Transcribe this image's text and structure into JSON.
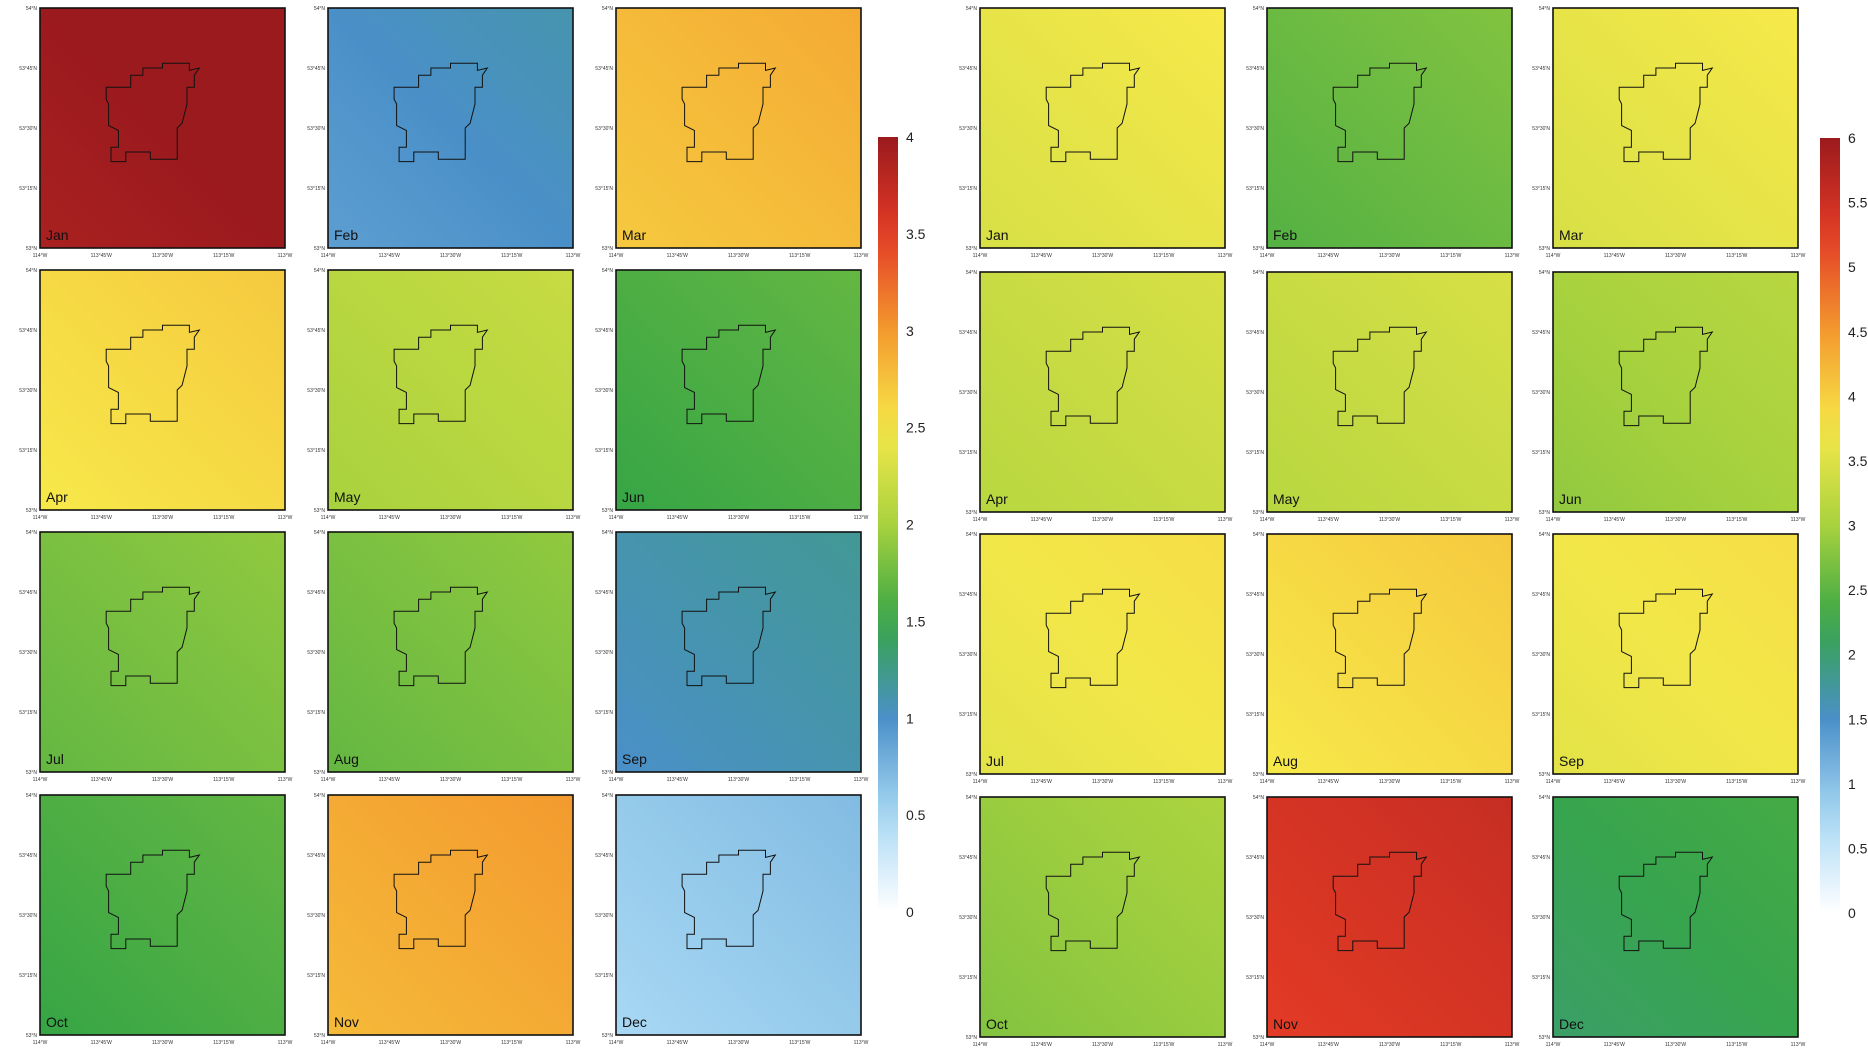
{
  "chart_data": [
    {
      "type": "heatmap",
      "title": "",
      "xlabel": "",
      "ylabel": "",
      "x_ticks": [
        "114°W",
        "113°45'W",
        "113°30'W",
        "113°15'W",
        "113°W"
      ],
      "y_ticks": [
        "54°N",
        "53°45'N",
        "53°30'N",
        "53°15'N",
        "53°N"
      ],
      "months": [
        {
          "label": "Jan",
          "value": 4.0
        },
        {
          "label": "Feb",
          "value": 1.0
        },
        {
          "label": "Mar",
          "value": 2.8
        },
        {
          "label": "Apr",
          "value": 2.6
        },
        {
          "label": "May",
          "value": 2.1
        },
        {
          "label": "Jun",
          "value": 1.6
        },
        {
          "label": "Jul",
          "value": 1.8
        },
        {
          "label": "Aug",
          "value": 1.8
        },
        {
          "label": "Sep",
          "value": 1.1
        },
        {
          "label": "Oct",
          "value": 1.6
        },
        {
          "label": "Nov",
          "value": 2.9
        },
        {
          "label": "Dec",
          "value": 0.6
        }
      ],
      "colorbar": {
        "min": 0,
        "max": 4,
        "ticks": [
          "0",
          "0.5",
          "1",
          "1.5",
          "2",
          "2.5",
          "3",
          "3.5",
          "4"
        ]
      }
    },
    {
      "type": "heatmap",
      "title": "",
      "xlabel": "",
      "ylabel": "",
      "x_ticks": [
        "114°W",
        "113°45'W",
        "113°30'W",
        "113°15'W",
        "113°W"
      ],
      "y_ticks": [
        "54°N",
        "53°45'N",
        "53°30'N",
        "53°15'N",
        "53°N"
      ],
      "months": [
        {
          "label": "Jan",
          "value": 3.6
        },
        {
          "label": "Feb",
          "value": 2.6
        },
        {
          "label": "Mar",
          "value": 3.6
        },
        {
          "label": "Apr",
          "value": 3.3
        },
        {
          "label": "May",
          "value": 3.3
        },
        {
          "label": "Jun",
          "value": 3.0
        },
        {
          "label": "Jul",
          "value": 3.7
        },
        {
          "label": "Aug",
          "value": 3.9
        },
        {
          "label": "Sep",
          "value": 3.7
        },
        {
          "label": "Oct",
          "value": 2.9
        },
        {
          "label": "Nov",
          "value": 5.4
        },
        {
          "label": "Dec",
          "value": 2.2
        }
      ],
      "colorbar": {
        "min": 0,
        "max": 6,
        "ticks": [
          "0",
          "0.5",
          "1",
          "1.5",
          "2",
          "2.5",
          "3",
          "3.5",
          "4",
          "4.5",
          "5",
          "5.5",
          "6"
        ]
      }
    }
  ],
  "palette": [
    "#ffffff",
    "#a8d8f4",
    "#4a90c8",
    "#36a545",
    "#a8d23e",
    "#f7e94a",
    "#f39a2e",
    "#e33b26",
    "#9b1a1e"
  ]
}
